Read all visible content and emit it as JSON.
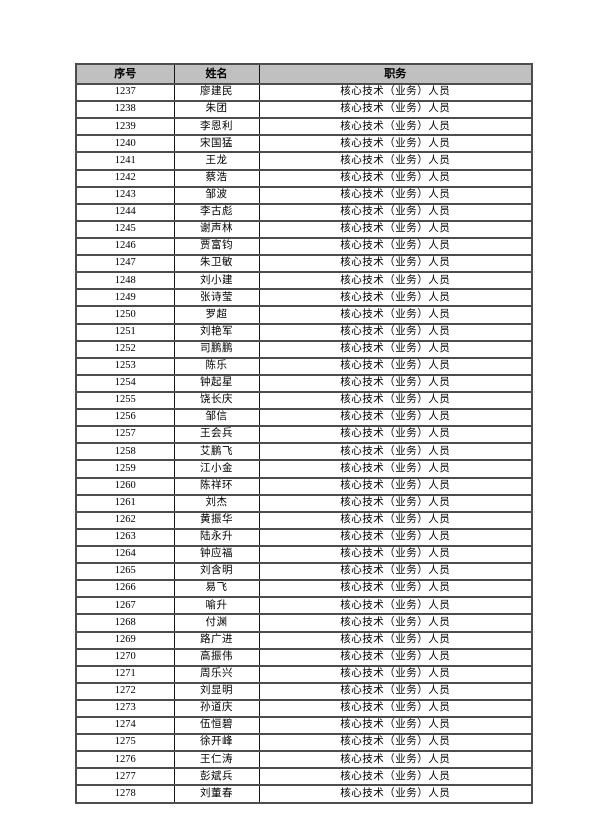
{
  "table": {
    "headers": [
      "序号",
      "姓名",
      "职务"
    ],
    "rows": [
      {
        "no": "1237",
        "name": "廖建民",
        "position": "核心技术（业务）人员"
      },
      {
        "no": "1238",
        "name": "朱团",
        "position": "核心技术（业务）人员"
      },
      {
        "no": "1239",
        "name": "李恩利",
        "position": "核心技术（业务）人员"
      },
      {
        "no": "1240",
        "name": "宋国猛",
        "position": "核心技术（业务）人员"
      },
      {
        "no": "1241",
        "name": "王龙",
        "position": "核心技术（业务）人员"
      },
      {
        "no": "1242",
        "name": "蔡浩",
        "position": "核心技术（业务）人员"
      },
      {
        "no": "1243",
        "name": "邹波",
        "position": "核心技术（业务）人员"
      },
      {
        "no": "1244",
        "name": "李古彪",
        "position": "核心技术（业务）人员"
      },
      {
        "no": "1245",
        "name": "谢声林",
        "position": "核心技术（业务）人员"
      },
      {
        "no": "1246",
        "name": "贾富钧",
        "position": "核心技术（业务）人员"
      },
      {
        "no": "1247",
        "name": "朱卫敏",
        "position": "核心技术（业务）人员"
      },
      {
        "no": "1248",
        "name": "刘小建",
        "position": "核心技术（业务）人员"
      },
      {
        "no": "1249",
        "name": "张诗莹",
        "position": "核心技术（业务）人员"
      },
      {
        "no": "1250",
        "name": "罗超",
        "position": "核心技术（业务）人员"
      },
      {
        "no": "1251",
        "name": "刘艳军",
        "position": "核心技术（业务）人员"
      },
      {
        "no": "1252",
        "name": "司鹏鹏",
        "position": "核心技术（业务）人员"
      },
      {
        "no": "1253",
        "name": "陈乐",
        "position": "核心技术（业务）人员"
      },
      {
        "no": "1254",
        "name": "钟起星",
        "position": "核心技术（业务）人员"
      },
      {
        "no": "1255",
        "name": "饶长庆",
        "position": "核心技术（业务）人员"
      },
      {
        "no": "1256",
        "name": "邹信",
        "position": "核心技术（业务）人员"
      },
      {
        "no": "1257",
        "name": "王会兵",
        "position": "核心技术（业务）人员"
      },
      {
        "no": "1258",
        "name": "艾鹏飞",
        "position": "核心技术（业务）人员"
      },
      {
        "no": "1259",
        "name": "江小金",
        "position": "核心技术（业务）人员"
      },
      {
        "no": "1260",
        "name": "陈祥环",
        "position": "核心技术（业务）人员"
      },
      {
        "no": "1261",
        "name": "刘杰",
        "position": "核心技术（业务）人员"
      },
      {
        "no": "1262",
        "name": "黄振华",
        "position": "核心技术（业务）人员"
      },
      {
        "no": "1263",
        "name": "陆永升",
        "position": "核心技术（业务）人员"
      },
      {
        "no": "1264",
        "name": "钟应福",
        "position": "核心技术（业务）人员"
      },
      {
        "no": "1265",
        "name": "刘含明",
        "position": "核心技术（业务）人员"
      },
      {
        "no": "1266",
        "name": "易飞",
        "position": "核心技术（业务）人员"
      },
      {
        "no": "1267",
        "name": "喻升",
        "position": "核心技术（业务）人员"
      },
      {
        "no": "1268",
        "name": "付渊",
        "position": "核心技术（业务）人员"
      },
      {
        "no": "1269",
        "name": "路广进",
        "position": "核心技术（业务）人员"
      },
      {
        "no": "1270",
        "name": "高振伟",
        "position": "核心技术（业务）人员"
      },
      {
        "no": "1271",
        "name": "周乐兴",
        "position": "核心技术（业务）人员"
      },
      {
        "no": "1272",
        "name": "刘显明",
        "position": "核心技术（业务）人员"
      },
      {
        "no": "1273",
        "name": "孙道庆",
        "position": "核心技术（业务）人员"
      },
      {
        "no": "1274",
        "name": "伍恒碧",
        "position": "核心技术（业务）人员"
      },
      {
        "no": "1275",
        "name": "徐开峰",
        "position": "核心技术（业务）人员"
      },
      {
        "no": "1276",
        "name": "王仁涛",
        "position": "核心技术（业务）人员"
      },
      {
        "no": "1277",
        "name": "彭斌兵",
        "position": "核心技术（业务）人员"
      },
      {
        "no": "1278",
        "name": "刘董春",
        "position": "核心技术（业务）人员"
      }
    ],
    "colors": {
      "header_bg": "#c0c0c0",
      "border": "#4d4d4d",
      "text": "#000000"
    }
  }
}
